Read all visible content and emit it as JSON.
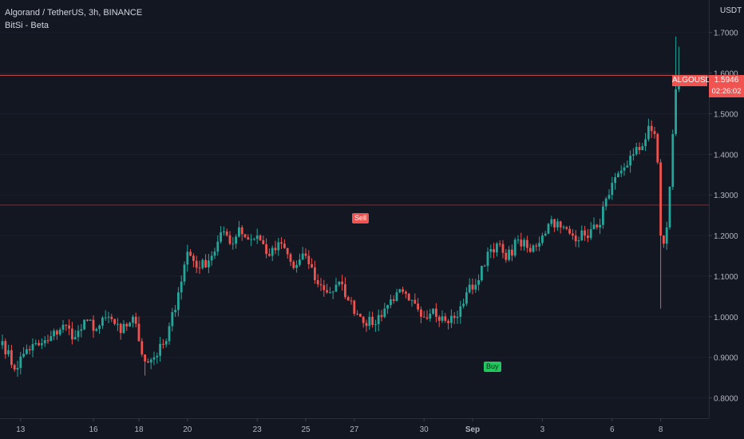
{
  "header": {
    "symbol_line": "Algorand / TetherUS, 3h, BINANCE",
    "indicator_line": "BitSi - Beta"
  },
  "axis_unit": "USDT",
  "last_price": {
    "symbol": "ALGOUSDT",
    "price": "1.5946",
    "countdown": "02:26:02"
  },
  "signals": {
    "sell": "Sell",
    "buy": "Buy"
  },
  "colors": {
    "background": "#131722",
    "up": "#26a69a",
    "down": "#ef5350",
    "text": "#d1d4dc",
    "buy": "#22c55e"
  },
  "chart_data": {
    "type": "candlestick",
    "title": "Algorand / TetherUS, 3h, BINANCE",
    "ylim": [
      0.75,
      1.78
    ],
    "yticks": [
      0.8,
      0.9,
      1.0,
      1.1,
      1.2,
      1.3,
      1.4,
      1.5,
      1.6,
      1.7
    ],
    "ytick_labels": [
      "0.8000",
      "0.9000",
      "1.0000",
      "1.1000",
      "1.2000",
      "1.3000",
      "1.4000",
      "1.5000",
      "1.6000",
      "1.7000"
    ],
    "xtick_labels": [
      {
        "label": "13",
        "x": 6
      },
      {
        "label": "16",
        "x": 30
      },
      {
        "label": "18",
        "x": 45
      },
      {
        "label": "20",
        "x": 61
      },
      {
        "label": "23",
        "x": 84
      },
      {
        "label": "25",
        "x": 100
      },
      {
        "label": "27",
        "x": 116
      },
      {
        "label": "30",
        "x": 139
      },
      {
        "label": "Sep",
        "x": 155
      },
      {
        "label": "3",
        "x": 178
      },
      {
        "label": "6",
        "x": 201
      },
      {
        "label": "8",
        "x": 217
      }
    ],
    "last_price": 1.5946,
    "horizontal_lines": [
      {
        "value": 1.5946,
        "color": "#f05350"
      },
      {
        "value": 1.275,
        "color": "#f05350"
      }
    ],
    "signals": [
      {
        "label": "Sell",
        "x": 118,
        "price": 1.275
      },
      {
        "label": "Buy",
        "x": 163,
        "price": 0.905
      }
    ],
    "anchors": [
      [
        0,
        0.94
      ],
      [
        4,
        0.87
      ],
      [
        8,
        0.92
      ],
      [
        12,
        0.93
      ],
      [
        15,
        0.94
      ],
      [
        20,
        0.98
      ],
      [
        24,
        0.95
      ],
      [
        28,
        0.99
      ],
      [
        31,
        0.97
      ],
      [
        35,
        1.0
      ],
      [
        39,
        0.96
      ],
      [
        43,
        1.0
      ],
      [
        47,
        0.89
      ],
      [
        50,
        0.9
      ],
      [
        54,
        0.94
      ],
      [
        58,
        1.06
      ],
      [
        61,
        1.16
      ],
      [
        65,
        1.12
      ],
      [
        69,
        1.15
      ],
      [
        73,
        1.21
      ],
      [
        76,
        1.18
      ],
      [
        78,
        1.22
      ],
      [
        81,
        1.19
      ],
      [
        84,
        1.2
      ],
      [
        88,
        1.15
      ],
      [
        92,
        1.18
      ],
      [
        96,
        1.12
      ],
      [
        100,
        1.15
      ],
      [
        104,
        1.08
      ],
      [
        108,
        1.06
      ],
      [
        112,
        1.08
      ],
      [
        114,
        1.04
      ],
      [
        118,
        1.0
      ],
      [
        122,
        0.98
      ],
      [
        126,
        1.02
      ],
      [
        130,
        1.06
      ],
      [
        134,
        1.04
      ],
      [
        138,
        1.0
      ],
      [
        142,
        1.02
      ],
      [
        146,
        0.99
      ],
      [
        150,
        1.0
      ],
      [
        153,
        1.06
      ],
      [
        157,
        1.09
      ],
      [
        160,
        1.16
      ],
      [
        163,
        1.18
      ],
      [
        166,
        1.14
      ],
      [
        170,
        1.19
      ],
      [
        174,
        1.16
      ],
      [
        178,
        1.2
      ],
      [
        181,
        1.24
      ],
      [
        184,
        1.22
      ],
      [
        188,
        1.2
      ],
      [
        192,
        1.2
      ],
      [
        196,
        1.22
      ],
      [
        200,
        1.3
      ],
      [
        204,
        1.36
      ],
      [
        208,
        1.4
      ],
      [
        211,
        1.42
      ],
      [
        213,
        1.47
      ],
      [
        215,
        1.45
      ],
      [
        216,
        1.38
      ],
      [
        217,
        1.2
      ],
      [
        218,
        1.18
      ],
      [
        219,
        1.22
      ],
      [
        220,
        1.32
      ],
      [
        221,
        1.45
      ],
      [
        222,
        1.56
      ],
      [
        223,
        1.5946
      ]
    ]
  }
}
